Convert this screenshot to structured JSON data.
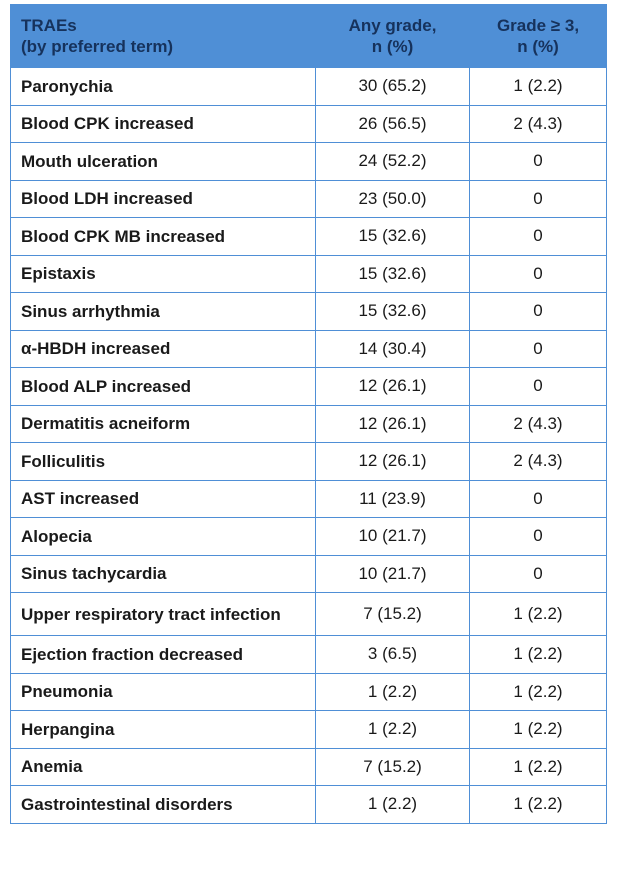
{
  "header": {
    "col1_line1": "TRAEs",
    "col1_line2": "(by preferred term)",
    "col2_line1": "Any grade,",
    "col2_line2": "n (%)",
    "col3_line1": "Grade ≥ 3,",
    "col3_line2": "n (%)"
  },
  "rows": [
    {
      "term": "Paronychia",
      "any": "30 (65.2)",
      "g3": "1 (2.2)"
    },
    {
      "term": "Blood CPK increased",
      "any": "26 (56.5)",
      "g3": "2 (4.3)"
    },
    {
      "term": "Mouth ulceration",
      "any": "24 (52.2)",
      "g3": "0"
    },
    {
      "term": "Blood LDH increased",
      "any": "23 (50.0)",
      "g3": "0"
    },
    {
      "term": "Blood CPK MB increased",
      "any": "15 (32.6)",
      "g3": "0"
    },
    {
      "term": "Epistaxis",
      "any": "15 (32.6)",
      "g3": "0"
    },
    {
      "term": "Sinus arrhythmia",
      "any": "15 (32.6)",
      "g3": "0"
    },
    {
      "term": "α-HBDH increased",
      "any": "14 (30.4)",
      "g3": "0"
    },
    {
      "term": "Blood ALP increased",
      "any": "12 (26.1)",
      "g3": "0"
    },
    {
      "term": "Dermatitis acneiform",
      "any": "12 (26.1)",
      "g3": "2 (4.3)"
    },
    {
      "term": "Folliculitis",
      "any": "12 (26.1)",
      "g3": "2 (4.3)"
    },
    {
      "term": "AST increased",
      "any": "11 (23.9)",
      "g3": "0"
    },
    {
      "term": "Alopecia",
      "any": "10 (21.7)",
      "g3": "0"
    },
    {
      "term": "Sinus tachycardia",
      "any": "10 (21.7)",
      "g3": "0"
    },
    {
      "term": "Upper respiratory tract infection",
      "any": "7 (15.2)",
      "g3": "1 (2.2)"
    },
    {
      "term": "Ejection fraction decreased",
      "any": "3 (6.5)",
      "g3": "1 (2.2)"
    },
    {
      "term": "Pneumonia",
      "any": "1 (2.2)",
      "g3": "1 (2.2)"
    },
    {
      "term": "Herpangina",
      "any": "1 (2.2)",
      "g3": "1 (2.2)"
    },
    {
      "term": "Anemia",
      "any": "7 (15.2)",
      "g3": "1 (2.2)"
    },
    {
      "term": "Gastrointestinal disorders",
      "any": "1 (2.2)",
      "g3": "1 (2.2)"
    }
  ]
}
